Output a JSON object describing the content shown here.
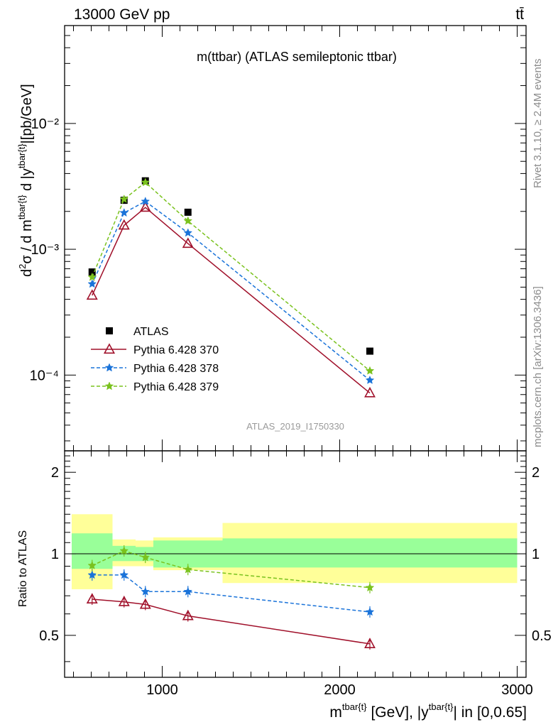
{
  "header": {
    "left": "13000 GeV pp",
    "right": "tt̄"
  },
  "side_labels": {
    "rivet": "Rivet 3.1.10, ≥ 2.4M events",
    "mcplots": "mcplots.cern.ch [arXiv:1306.3436]"
  },
  "chart_data": [
    {
      "type": "line",
      "title": "m(ttbar) (ATLAS semileptonic ttbar)",
      "watermark": "ATLAS_2019_I1750330",
      "ylabel": "d²σ / d m^{tbar{t}} d |y^{tbar{t}}|[pb/GeV]",
      "xlim": [
        450,
        3050
      ],
      "ylim": [
        2.5e-05,
        0.06
      ],
      "yscale": "log",
      "ytick_labels": [
        "10⁻⁴",
        "10⁻³",
        "10⁻²"
      ],
      "legend_position": "center-left",
      "x": [
        605,
        785,
        905,
        1145,
        2170
      ],
      "series": [
        {
          "name": "ATLAS",
          "style": "marker-square",
          "color": "#000000",
          "values": [
            0.00066,
            0.00245,
            0.0035,
            0.00197,
            0.000155
          ]
        },
        {
          "name": "Pythia 6.428 370",
          "style": "solid-triangle",
          "color": "#a0102a",
          "values": [
            0.00043,
            0.00155,
            0.00215,
            0.00111,
            7.2e-05
          ]
        },
        {
          "name": "Pythia 6.428 378",
          "style": "dashed-star",
          "color": "#1a73d9",
          "values": [
            0.00053,
            0.00195,
            0.0024,
            0.00135,
            9.1e-05
          ]
        },
        {
          "name": "Pythia 6.428 379",
          "style": "dashed-star",
          "color": "#7ac21e",
          "values": [
            0.0006,
            0.0025,
            0.0034,
            0.00168,
            0.000108
          ]
        }
      ]
    },
    {
      "type": "line",
      "ylabel": "Ratio to ATLAS",
      "xlabel": "m^{tbar{t}} [GeV], |y^{tbar{t}}| in [0,0.65]",
      "xlim": [
        450,
        3050
      ],
      "ylim": [
        0.35,
        2.4
      ],
      "yscale": "log",
      "xticks": [
        1000,
        2000,
        3000
      ],
      "yticks": [
        0.5,
        1,
        2
      ],
      "bands": {
        "edges": [
          490,
          720,
          850,
          950,
          1340,
          3000
        ],
        "inner": [
          [
            0.88,
            1.19
          ],
          [
            0.94,
            1.07
          ],
          [
            0.94,
            1.06
          ],
          [
            0.89,
            1.12
          ],
          [
            0.89,
            1.14
          ]
        ],
        "outer": [
          [
            0.74,
            1.4
          ],
          [
            0.9,
            1.13
          ],
          [
            0.9,
            1.12
          ],
          [
            0.87,
            1.15
          ],
          [
            0.78,
            1.3
          ]
        ],
        "inner_color": "#99ff99",
        "outer_color": "#ffff99"
      },
      "x": [
        605,
        785,
        905,
        1145,
        2170
      ],
      "series": [
        {
          "name": "Pythia 6.428 370",
          "color": "#a0102a",
          "values": [
            0.68,
            0.665,
            0.65,
            0.59,
            0.465
          ]
        },
        {
          "name": "Pythia 6.428 378",
          "color": "#1a73d9",
          "values": [
            0.835,
            0.835,
            0.725,
            0.725,
            0.61
          ]
        },
        {
          "name": "Pythia 6.428 379",
          "color": "#7ac21e",
          "values": [
            0.905,
            1.025,
            0.97,
            0.875,
            0.75
          ]
        }
      ]
    }
  ]
}
